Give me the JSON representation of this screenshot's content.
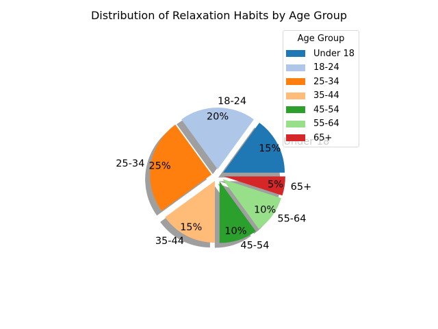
{
  "chart_data": {
    "type": "pie",
    "title": "Distribution of Relaxation Habits by Age Group",
    "categories": [
      "Under 18",
      "18-24",
      "25-34",
      "35-44",
      "45-54",
      "55-64",
      "65+"
    ],
    "values": [
      15,
      20,
      25,
      15,
      10,
      10,
      5
    ],
    "value_labels": [
      "15%",
      "20%",
      "25%",
      "15%",
      "10%",
      "10%",
      "5%"
    ],
    "colors": [
      "#1f77b4",
      "#aec7e8",
      "#ff7f0e",
      "#ffbb78",
      "#2ca02c",
      "#98df8a",
      "#d62728"
    ],
    "start_angle_deg": 0,
    "direction": "counterclockwise",
    "explode": 0.1,
    "shadow": true,
    "legend": {
      "title": "Age Group",
      "placement": "upper-right",
      "entries": [
        "Under 18",
        "18-24",
        "25-34",
        "35-44",
        "45-54",
        "55-64",
        "65+"
      ]
    }
  }
}
